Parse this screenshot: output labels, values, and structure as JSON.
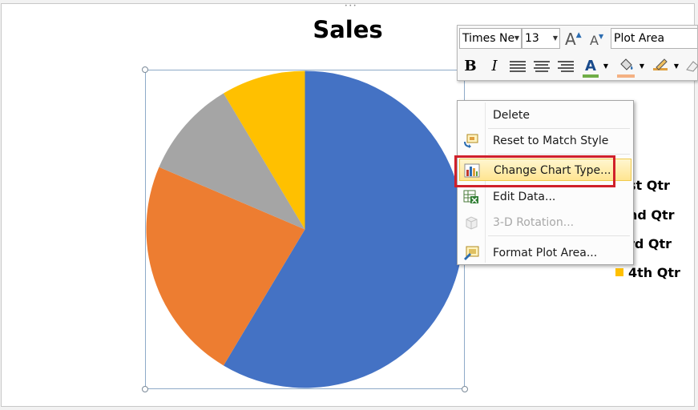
{
  "chart": {
    "title": "Sales"
  },
  "chart_data": {
    "type": "pie",
    "title": "Sales",
    "categories": [
      "1st Qtr",
      "2nd Qtr",
      "3rd Qtr",
      "4th Qtr"
    ],
    "values": [
      8.2,
      3.2,
      1.4,
      1.2
    ],
    "colors": [
      "#4472c4",
      "#ed7d31",
      "#a5a5a5",
      "#ffc000"
    ],
    "legend_position": "right"
  },
  "legend": {
    "items": [
      {
        "label": "1st Qtr",
        "color": "#4472c4",
        "shown": "st Qtr"
      },
      {
        "label": "2nd Qtr",
        "color": "#ed7d31",
        "shown": "nd Qtr"
      },
      {
        "label": "3rd Qtr",
        "color": "#a5a5a5",
        "shown": "rd Qtr"
      },
      {
        "label": "4th Qtr",
        "color": "#ffc000",
        "shown": "4th Qtr"
      }
    ]
  },
  "mini_toolbar": {
    "font_name": "Times Ne",
    "font_size": "13",
    "grow_font_icon": "grow-font-icon",
    "shrink_font_icon": "shrink-font-icon",
    "element_selector": "Plot Area",
    "bold": "B",
    "italic": "I",
    "font_color": "#70ad47",
    "fill_color": "#f4b183",
    "font_color_letter": "A"
  },
  "context_menu": {
    "items": [
      {
        "label": "Delete",
        "icon": "none",
        "disabled": false
      },
      {
        "label": "Reset to Match Style",
        "icon": "reset-style-icon",
        "disabled": false
      },
      {
        "label": "Change Chart Type...",
        "icon": "change-chart-type-icon",
        "disabled": false,
        "highlighted": true
      },
      {
        "label": "Edit Data...",
        "icon": "edit-data-icon",
        "disabled": false
      },
      {
        "label": "3-D Rotation...",
        "icon": "rotation-3d-icon",
        "disabled": true
      },
      {
        "label": "Format Plot Area...",
        "icon": "format-plot-area-icon",
        "disabled": false
      }
    ]
  },
  "colors": {
    "highlight_outline": "#d0202a",
    "menu_highlight": "#ffe591"
  }
}
